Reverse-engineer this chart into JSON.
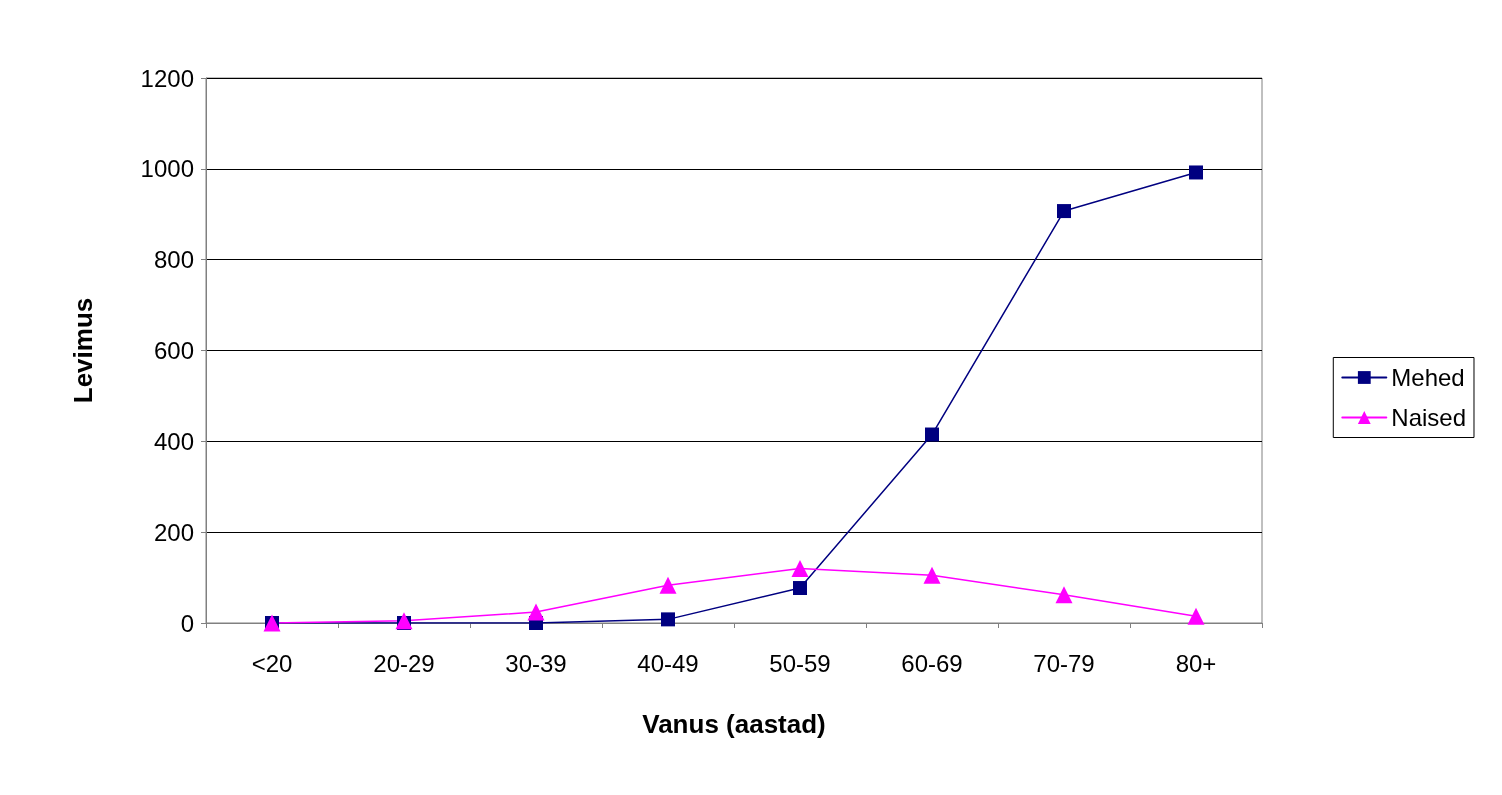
{
  "chart_data": {
    "type": "line",
    "xlabel": "Vanus (aastad)",
    "ylabel": "Levimus",
    "categories": [
      "<20",
      "20-29",
      "30-39",
      "40-49",
      "50-59",
      "60-69",
      "70-79",
      "80+"
    ],
    "series": [
      {
        "name": "Mehed",
        "color": "#000080",
        "marker": "square",
        "values": [
          0,
          0,
          0,
          8,
          77,
          415,
          907,
          992
        ]
      },
      {
        "name": "Naised",
        "color": "#ff00ff",
        "marker": "triangle",
        "values": [
          0,
          5,
          24,
          83,
          120,
          105,
          62,
          15
        ]
      }
    ],
    "ylim": [
      0,
      1200
    ],
    "yticks": [
      0,
      200,
      400,
      600,
      800,
      1000,
      1200
    ],
    "grid": "y",
    "legend": "right",
    "line_style": "solid"
  }
}
